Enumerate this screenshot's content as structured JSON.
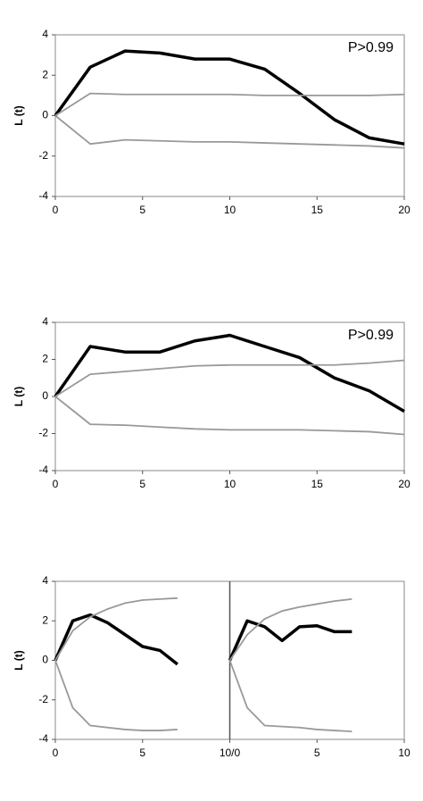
{
  "chart_data": [
    {
      "type": "line",
      "y_label": "L (t)",
      "annotation": "P>0.99",
      "x": [
        0,
        2,
        4,
        6,
        8,
        10,
        12,
        14,
        16,
        18,
        20
      ],
      "xlim": [
        0,
        20
      ],
      "xticks": [
        0,
        5,
        10,
        15,
        20
      ],
      "ylim": [
        -4,
        4
      ],
      "yticks": [
        -4,
        -2,
        0,
        2,
        4
      ],
      "series": [
        {
          "color": "#000000",
          "values": [
            0,
            2.4,
            3.2,
            3.1,
            2.8,
            2.8,
            2.3,
            1.1,
            -0.2,
            -1.1,
            -1.4
          ]
        },
        {
          "color": "#999999",
          "values": [
            0,
            1.1,
            1.05,
            1.05,
            1.05,
            1.05,
            1.0,
            1.0,
            1.0,
            1.0,
            1.05
          ]
        },
        {
          "color": "#999999",
          "values": [
            0,
            -1.4,
            -1.2,
            -1.25,
            -1.3,
            -1.3,
            -1.35,
            -1.4,
            -1.45,
            -1.5,
            -1.6
          ]
        }
      ]
    },
    {
      "type": "line",
      "y_label": "L (t)",
      "annotation": "P>0.99",
      "x": [
        0,
        2,
        4,
        6,
        8,
        10,
        12,
        14,
        16,
        18,
        20
      ],
      "xlim": [
        0,
        20
      ],
      "xticks": [
        0,
        5,
        10,
        15,
        20
      ],
      "ylim": [
        -4,
        4
      ],
      "yticks": [
        -4,
        -2,
        0,
        2,
        4
      ],
      "series": [
        {
          "color": "#000000",
          "values": [
            0,
            2.7,
            2.4,
            2.4,
            3.0,
            3.3,
            2.7,
            2.1,
            1.0,
            0.3,
            -0.8
          ]
        },
        {
          "color": "#999999",
          "values": [
            0,
            1.2,
            1.35,
            1.5,
            1.65,
            1.7,
            1.7,
            1.7,
            1.7,
            1.8,
            1.95
          ]
        },
        {
          "color": "#999999",
          "values": [
            0,
            -1.5,
            -1.55,
            -1.65,
            -1.75,
            -1.8,
            -1.8,
            -1.8,
            -1.85,
            -1.9,
            -2.05
          ]
        }
      ]
    },
    {
      "type": "line",
      "y_label": "L (t)",
      "ylim": [
        -4,
        4
      ],
      "yticks": [
        -4,
        -2,
        0,
        2,
        4
      ],
      "panels": [
        {
          "x": [
            0,
            1,
            2,
            3,
            4,
            5,
            6,
            7
          ],
          "xlim": [
            0,
            10
          ],
          "xticks": [
            0,
            5
          ],
          "series": [
            {
              "color": "#000000",
              "values": [
                0,
                2.0,
                2.3,
                1.9,
                1.3,
                0.7,
                0.5,
                -0.2
              ]
            },
            {
              "color": "#999999",
              "values": [
                0,
                1.5,
                2.2,
                2.6,
                2.9,
                3.05,
                3.1,
                3.15
              ]
            },
            {
              "color": "#999999",
              "values": [
                0,
                -2.4,
                -3.3,
                -3.4,
                -3.5,
                -3.55,
                -3.55,
                -3.5
              ]
            }
          ]
        },
        {
          "x": [
            0,
            1,
            2,
            3,
            4,
            5,
            6,
            7
          ],
          "xlim": [
            0,
            10
          ],
          "xticks": [
            {
              "value": 0,
              "label": "10/0"
            },
            5,
            10
          ],
          "series": [
            {
              "color": "#000000",
              "values": [
                0,
                2.0,
                1.7,
                1.0,
                1.7,
                1.75,
                1.45,
                1.45
              ]
            },
            {
              "color": "#999999",
              "values": [
                0,
                1.3,
                2.1,
                2.5,
                2.7,
                2.85,
                3.0,
                3.1
              ]
            },
            {
              "color": "#999999",
              "values": [
                0,
                -2.4,
                -3.3,
                -3.35,
                -3.4,
                -3.5,
                -3.55,
                -3.6
              ]
            }
          ]
        }
      ]
    }
  ]
}
